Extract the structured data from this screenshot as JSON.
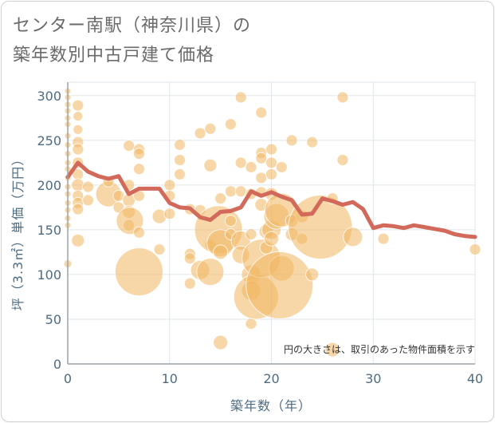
{
  "title_lines": [
    "センター南駅（神奈川県）の",
    "築年数別中古戸建て価格"
  ],
  "chart_data": {
    "type": "scatter",
    "xlabel": "築年数（年）",
    "ylabel": "坪（3.3㎡）単価（万円）",
    "xlim": [
      0,
      40
    ],
    "ylim": [
      0,
      310
    ],
    "x_ticks": [
      0,
      10,
      20,
      30,
      40
    ],
    "y_ticks": [
      0,
      50,
      100,
      150,
      200,
      250,
      300
    ],
    "grid": true,
    "note": "円の大きさは、取引のあった物件面積を示す",
    "colors": {
      "bubble": "#f0b660",
      "line": "#d2695a",
      "grid": "#dfe5ea",
      "axis": "#9aa3aa"
    },
    "bubbles": [
      {
        "x": 0,
        "y": 305,
        "s": 4
      },
      {
        "x": 0,
        "y": 298,
        "s": 4
      },
      {
        "x": 0,
        "y": 290,
        "s": 4
      },
      {
        "x": 0,
        "y": 283,
        "s": 4
      },
      {
        "x": 0,
        "y": 275,
        "s": 4
      },
      {
        "x": 0,
        "y": 268,
        "s": 4
      },
      {
        "x": 0,
        "y": 255,
        "s": 4
      },
      {
        "x": 0,
        "y": 245,
        "s": 4
      },
      {
        "x": 0,
        "y": 235,
        "s": 4
      },
      {
        "x": 0,
        "y": 225,
        "s": 4
      },
      {
        "x": 0,
        "y": 218,
        "s": 4
      },
      {
        "x": 0,
        "y": 208,
        "s": 4
      },
      {
        "x": 0,
        "y": 198,
        "s": 4
      },
      {
        "x": 0,
        "y": 190,
        "s": 4
      },
      {
        "x": 0,
        "y": 180,
        "s": 4
      },
      {
        "x": 0,
        "y": 172,
        "s": 4
      },
      {
        "x": 0,
        "y": 163,
        "s": 4
      },
      {
        "x": 0,
        "y": 155,
        "s": 4
      },
      {
        "x": 0,
        "y": 112,
        "s": 5
      },
      {
        "x": 1,
        "y": 289,
        "s": 7
      },
      {
        "x": 1,
        "y": 277,
        "s": 6
      },
      {
        "x": 1,
        "y": 262,
        "s": 6
      },
      {
        "x": 1,
        "y": 248,
        "s": 7
      },
      {
        "x": 1,
        "y": 240,
        "s": 7
      },
      {
        "x": 1,
        "y": 225,
        "s": 7
      },
      {
        "x": 1,
        "y": 212,
        "s": 7
      },
      {
        "x": 1,
        "y": 200,
        "s": 8
      },
      {
        "x": 1,
        "y": 188,
        "s": 7
      },
      {
        "x": 1,
        "y": 180,
        "s": 7
      },
      {
        "x": 1,
        "y": 173,
        "s": 7
      },
      {
        "x": 1,
        "y": 138,
        "s": 8
      },
      {
        "x": 2,
        "y": 198,
        "s": 7
      },
      {
        "x": 2,
        "y": 183,
        "s": 7
      },
      {
        "x": 4,
        "y": 190,
        "s": 16
      },
      {
        "x": 4,
        "y": 204,
        "s": 7
      },
      {
        "x": 5,
        "y": 188,
        "s": 7
      },
      {
        "x": 5,
        "y": 175,
        "s": 7
      },
      {
        "x": 6,
        "y": 244,
        "s": 7
      },
      {
        "x": 6,
        "y": 200,
        "s": 7
      },
      {
        "x": 6,
        "y": 183,
        "s": 8
      },
      {
        "x": 6,
        "y": 170,
        "s": 8
      },
      {
        "x": 6,
        "y": 155,
        "s": 7
      },
      {
        "x": 6.1,
        "y": 160,
        "s": 17
      },
      {
        "x": 7,
        "y": 240,
        "s": 7
      },
      {
        "x": 7,
        "y": 235,
        "s": 7
      },
      {
        "x": 7,
        "y": 218,
        "s": 7
      },
      {
        "x": 7,
        "y": 188,
        "s": 7
      },
      {
        "x": 7,
        "y": 147,
        "s": 7
      },
      {
        "x": 7,
        "y": 103,
        "s": 30
      },
      {
        "x": 9,
        "y": 165,
        "s": 9
      },
      {
        "x": 9,
        "y": 128,
        "s": 7
      },
      {
        "x": 10,
        "y": 200,
        "s": 7
      },
      {
        "x": 10,
        "y": 188,
        "s": 7
      },
      {
        "x": 10,
        "y": 168,
        "s": 7
      },
      {
        "x": 11,
        "y": 245,
        "s": 7
      },
      {
        "x": 11,
        "y": 228,
        "s": 7
      },
      {
        "x": 11,
        "y": 212,
        "s": 7
      },
      {
        "x": 12,
        "y": 173,
        "s": 7
      },
      {
        "x": 12,
        "y": 123,
        "s": 7
      },
      {
        "x": 12,
        "y": 118,
        "s": 7
      },
      {
        "x": 12,
        "y": 90,
        "s": 7
      },
      {
        "x": 13,
        "y": 258,
        "s": 7
      },
      {
        "x": 13,
        "y": 172,
        "s": 7
      },
      {
        "x": 13,
        "y": 105,
        "s": 12
      },
      {
        "x": 14,
        "y": 263,
        "s": 7
      },
      {
        "x": 14,
        "y": 222,
        "s": 8
      },
      {
        "x": 14,
        "y": 133,
        "s": 7
      },
      {
        "x": 14,
        "y": 103,
        "s": 17
      },
      {
        "x": 14.8,
        "y": 150,
        "s": 30
      },
      {
        "x": 15,
        "y": 185,
        "s": 7
      },
      {
        "x": 15,
        "y": 135,
        "s": 17
      },
      {
        "x": 15,
        "y": 125,
        "s": 9
      },
      {
        "x": 15,
        "y": 24,
        "s": 9
      },
      {
        "x": 16,
        "y": 268,
        "s": 7
      },
      {
        "x": 16,
        "y": 193,
        "s": 7
      },
      {
        "x": 16,
        "y": 160,
        "s": 7
      },
      {
        "x": 16,
        "y": 145,
        "s": 7
      },
      {
        "x": 17,
        "y": 298,
        "s": 7
      },
      {
        "x": 17,
        "y": 225,
        "s": 7
      },
      {
        "x": 17,
        "y": 193,
        "s": 7
      },
      {
        "x": 17,
        "y": 138,
        "s": 12
      },
      {
        "x": 17,
        "y": 122,
        "s": 11
      },
      {
        "x": 18,
        "y": 220,
        "s": 7
      },
      {
        "x": 18,
        "y": 190,
        "s": 7
      },
      {
        "x": 18,
        "y": 145,
        "s": 7
      },
      {
        "x": 18,
        "y": 100,
        "s": 12
      },
      {
        "x": 18,
        "y": 82,
        "s": 12
      },
      {
        "x": 18,
        "y": 45,
        "s": 7
      },
      {
        "x": 18.5,
        "y": 75,
        "s": 28
      },
      {
        "x": 19,
        "y": 281,
        "s": 7
      },
      {
        "x": 19,
        "y": 236,
        "s": 7
      },
      {
        "x": 19,
        "y": 230,
        "s": 7
      },
      {
        "x": 19,
        "y": 208,
        "s": 7
      },
      {
        "x": 19,
        "y": 192,
        "s": 7
      },
      {
        "x": 19,
        "y": 178,
        "s": 8
      },
      {
        "x": 19,
        "y": 118,
        "s": 24
      },
      {
        "x": 19.5,
        "y": 148,
        "s": 9
      },
      {
        "x": 19.5,
        "y": 130,
        "s": 8
      },
      {
        "x": 20,
        "y": 240,
        "s": 7
      },
      {
        "x": 20,
        "y": 225,
        "s": 7
      },
      {
        "x": 20,
        "y": 212,
        "s": 7
      },
      {
        "x": 20,
        "y": 190,
        "s": 8
      },
      {
        "x": 20,
        "y": 150,
        "s": 12
      },
      {
        "x": 20,
        "y": 140,
        "s": 9
      },
      {
        "x": 20.5,
        "y": 165,
        "s": 16
      },
      {
        "x": 21,
        "y": 220,
        "s": 7
      },
      {
        "x": 21,
        "y": 172,
        "s": 21
      },
      {
        "x": 21,
        "y": 107,
        "s": 16
      },
      {
        "x": 20.8,
        "y": 88,
        "s": 42
      },
      {
        "x": 22,
        "y": 250,
        "s": 7
      },
      {
        "x": 22,
        "y": 160,
        "s": 8
      },
      {
        "x": 22,
        "y": 145,
        "s": 8
      },
      {
        "x": 23,
        "y": 165,
        "s": 8
      },
      {
        "x": 23,
        "y": 140,
        "s": 7
      },
      {
        "x": 24,
        "y": 248,
        "s": 7
      },
      {
        "x": 24,
        "y": 100,
        "s": 8
      },
      {
        "x": 24.8,
        "y": 153,
        "s": 40
      },
      {
        "x": 26,
        "y": 185,
        "s": 7
      },
      {
        "x": 26,
        "y": 16,
        "s": 9
      },
      {
        "x": 27,
        "y": 298,
        "s": 7
      },
      {
        "x": 27,
        "y": 228,
        "s": 7
      },
      {
        "x": 28,
        "y": 142,
        "s": 12
      },
      {
        "x": 31,
        "y": 140,
        "s": 7
      },
      {
        "x": 40,
        "y": 128,
        "s": 7
      }
    ],
    "line": {
      "x": [
        0,
        1,
        2,
        3,
        4,
        5,
        6,
        7,
        8,
        9,
        10,
        11,
        12,
        13,
        14,
        15,
        16,
        17,
        18,
        19,
        20,
        21,
        22,
        23,
        24,
        25,
        26,
        27,
        28,
        29,
        30,
        31,
        32,
        33,
        34,
        35,
        36,
        37,
        38,
        39,
        40
      ],
      "y": [
        209,
        225,
        215,
        210,
        207,
        210,
        190,
        196,
        196,
        196,
        180,
        175,
        174,
        164,
        161,
        170,
        171,
        175,
        193,
        188,
        192,
        187,
        183,
        167,
        168,
        185,
        182,
        178,
        181,
        173,
        152,
        155,
        154,
        152,
        155,
        153,
        151,
        149,
        145,
        143,
        142
      ]
    }
  }
}
